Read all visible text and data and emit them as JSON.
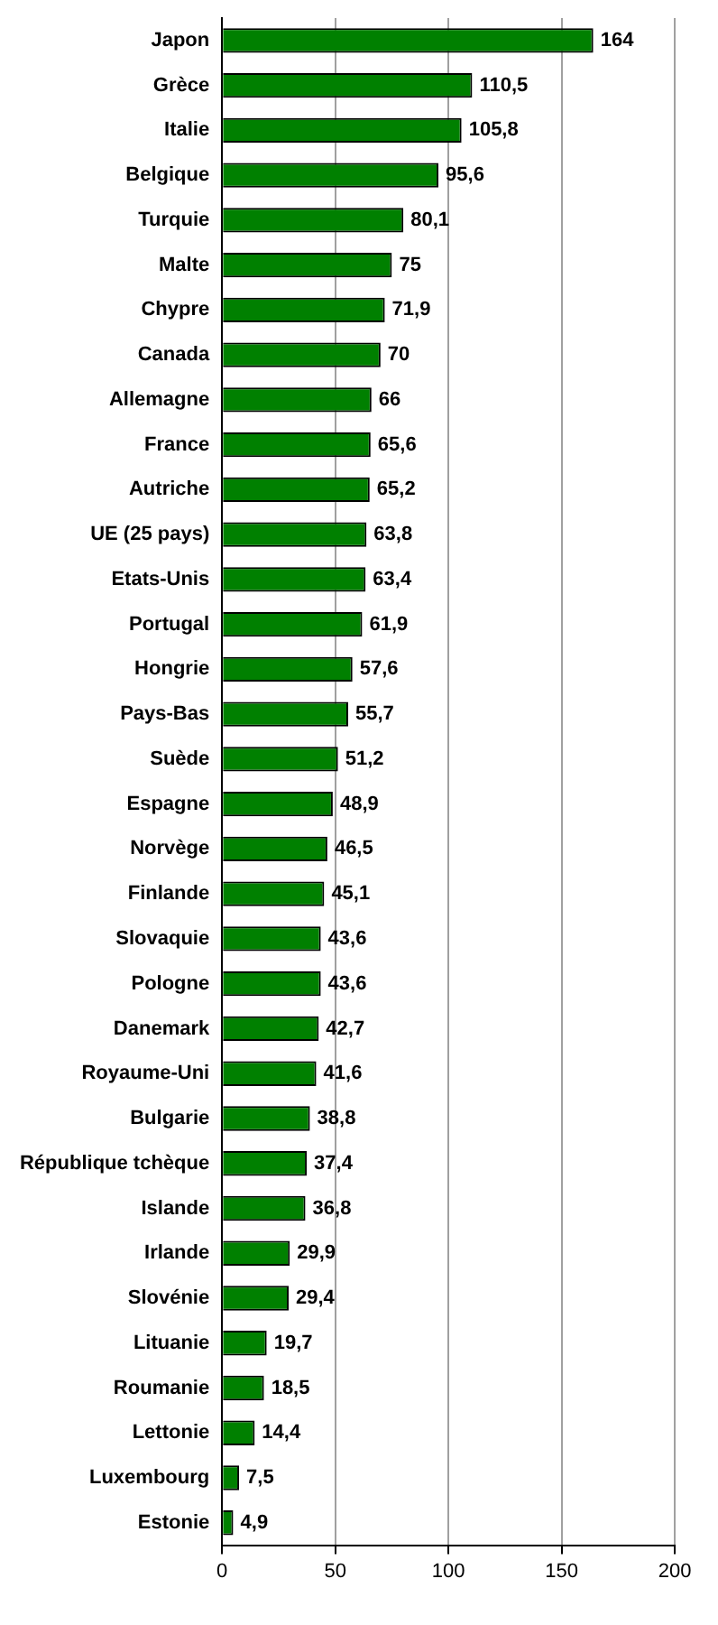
{
  "chart_data": {
    "type": "bar",
    "orientation": "horizontal",
    "categories": [
      "Japon",
      "Grèce",
      "Italie",
      "Belgique",
      "Turquie",
      "Malte",
      "Chypre",
      "Canada",
      "Allemagne",
      "France",
      "Autriche",
      "UE (25 pays)",
      "Etats-Unis",
      "Portugal",
      "Hongrie",
      "Pays-Bas",
      "Suède",
      "Espagne",
      "Norvège",
      "Finlande",
      "Slovaquie",
      "Pologne",
      "Danemark",
      "Royaume-Uni",
      "Bulgarie",
      "République tchèque",
      "Islande",
      "Irlande",
      "Slovénie",
      "Lituanie",
      "Roumanie",
      "Lettonie",
      "Luxembourg",
      "Estonie"
    ],
    "values": [
      164,
      110.5,
      105.8,
      95.6,
      80.1,
      75,
      71.9,
      70,
      66,
      65.6,
      65.2,
      63.8,
      63.4,
      61.9,
      57.6,
      55.7,
      51.2,
      48.9,
      46.5,
      45.1,
      43.6,
      43.6,
      42.7,
      41.6,
      38.8,
      37.4,
      36.8,
      29.9,
      29.4,
      19.7,
      18.5,
      14.4,
      7.5,
      4.9
    ],
    "value_labels": [
      "164",
      "110,5",
      "105,8",
      "95,6",
      "80,1",
      "75",
      "71,9",
      "70",
      "66",
      "65,6",
      "65,2",
      "63,8",
      "63,4",
      "61,9",
      "57,6",
      "55,7",
      "51,2",
      "48,9",
      "46,5",
      "45,1",
      "43,6",
      "43,6",
      "42,7",
      "41,6",
      "38,8",
      "37,4",
      "36,8",
      "29,9",
      "29,4",
      "19,7",
      "18,5",
      "14,4",
      "7,5",
      "4,9"
    ],
    "color": "#008000",
    "xlim": [
      0,
      200
    ],
    "xticks": [
      0,
      50,
      100,
      150,
      200
    ],
    "grid": "x",
    "legend": false
  }
}
